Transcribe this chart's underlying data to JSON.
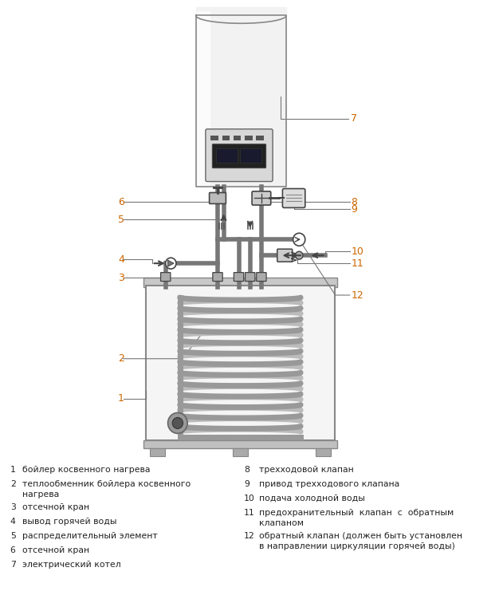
{
  "bg_color": "#ffffff",
  "line_color": "#444444",
  "boiler_color": "#f0f0f0",
  "boiler_edge": "#888888",
  "tank_color": "#f5f5f5",
  "tank_edge": "#888888",
  "coil_color": "#999999",
  "coil_back_color": "#bbbbbb",
  "pipe_color": "#777777",
  "label_color": "#cc6600",
  "legend_color": "#222222",
  "label_items_left": [
    [
      "1",
      "бойлер косвенного нагрева"
    ],
    [
      "2",
      "теплообменник бойлера косвенного\nнагрева"
    ],
    [
      "3",
      "отсечной кран"
    ],
    [
      "4",
      "вывод горячей воды"
    ],
    [
      "5",
      "распределительный элемент"
    ],
    [
      "6",
      "отсечной кран"
    ],
    [
      "7",
      "электрический котел"
    ]
  ],
  "label_items_right": [
    [
      "8",
      "трехходовой клапан"
    ],
    [
      "9",
      "привод трехходового клапана"
    ],
    [
      "10",
      "подача холодной воды"
    ],
    [
      "11",
      "предохранительный  клапан  с  обратным\nклапаном"
    ],
    [
      "12",
      "обратный клапан (должен быть установлен\nв направлении циркуляции горячей воды)"
    ]
  ]
}
